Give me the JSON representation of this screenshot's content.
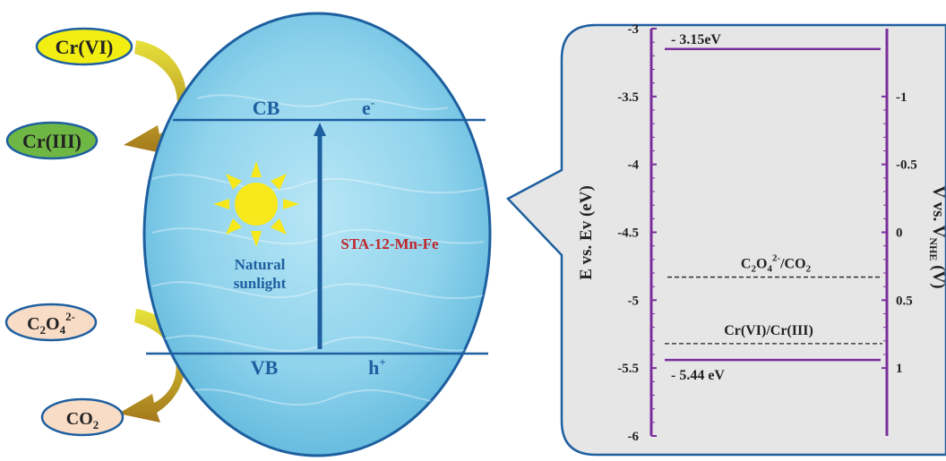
{
  "left_panel": {
    "cb_label": "CB",
    "electron_label": "e",
    "electron_sup": "-",
    "vb_label": "VB",
    "hole_label": "h",
    "hole_sup": "+",
    "sunlight_line1": "Natural",
    "sunlight_line2": "sunlight",
    "catalyst_label": "STA-12-Mn-Fe",
    "cr6_label": "Cr(VI)",
    "cr3_label": "Cr(III)",
    "oxalate": {
      "c": "C",
      "c_sub": "2",
      "o": "O",
      "o_sub": "4",
      "charge": "2-"
    },
    "co2": {
      "text": "CO",
      "sub": "2"
    }
  },
  "energy_diagram": {
    "left_axis": {
      "label": "E vs. Ev (eV)",
      "ticks": [
        "-3",
        "-3.5",
        "-4",
        "-4.5",
        "-5",
        "-5.5",
        "-6"
      ]
    },
    "right_axis": {
      "label_main": "V vs. V",
      "label_sub": "NHE",
      "label_tail": " (V)",
      "ticks": [
        "-1",
        "-0.5",
        "0",
        "0.5",
        "1"
      ]
    },
    "cb_level": {
      "value": -3.15,
      "label": "- 3.15eV"
    },
    "vb_level": {
      "value": -5.44,
      "label": "- 5.44 eV"
    },
    "oxalate_couple": {
      "value": -4.83,
      "prefix": "C",
      "sub1": "2",
      "mid": "O",
      "sub2": "4",
      "sup": "2-",
      "tail": "/CO",
      "sub3": "2"
    },
    "chromium_couple": {
      "value": -5.32,
      "label": "Cr(VI)/Cr(III)"
    }
  },
  "colors": {
    "ellipse_fill": "#8fd3ec",
    "ellipse_stroke": "#1e5fa0",
    "band_line": "#1e5fa0",
    "axis_purple": "#7a2e9c",
    "catalyst_text": "#c0262b",
    "sun": "#f6e81a",
    "cr6_fill": "#f2ee12",
    "cr3_fill": "#6fb745",
    "bubble_fill": "#f9dcc6",
    "panel_fill": "#e6e6e6"
  }
}
